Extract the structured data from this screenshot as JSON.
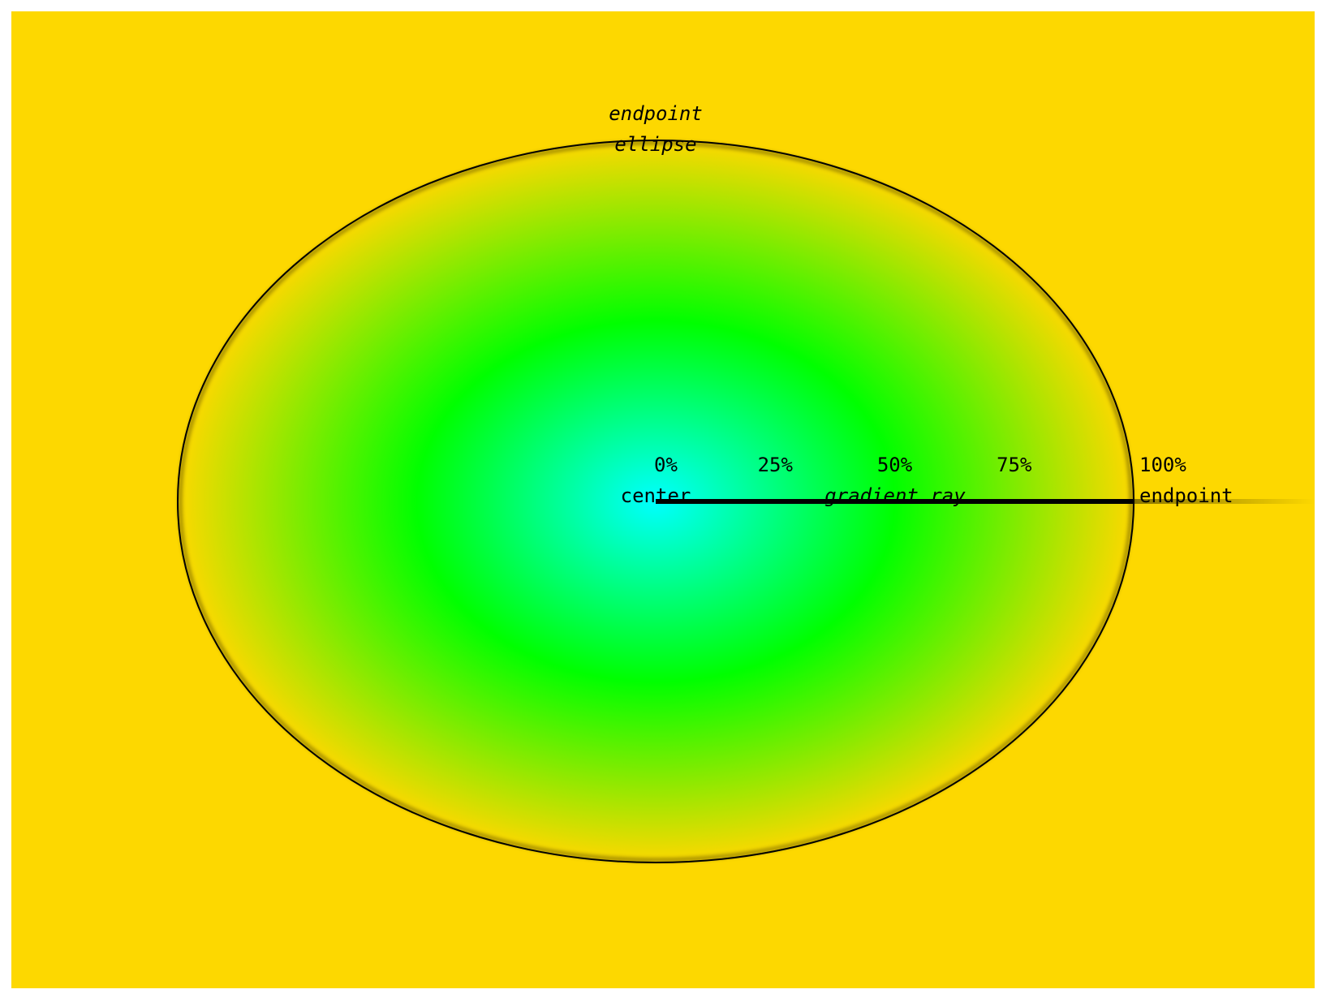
{
  "colors": {
    "background": "#FDD800",
    "center": "#00FFFF",
    "middle": "#00FF00",
    "edge": "#FDD800",
    "outline": "#000000",
    "ray": "#000000"
  },
  "gradient": {
    "stops": [
      {
        "offset": 0,
        "color": "#00FFFF"
      },
      {
        "offset": 0.5,
        "color": "#00FF00"
      },
      {
        "offset": 1,
        "color": "#FDD800"
      }
    ]
  },
  "labels": {
    "ellipse": {
      "line1": "endpoint",
      "line2": "ellipse"
    },
    "ray": "gradient ray",
    "center": "center",
    "endpoint": "endpoint"
  },
  "stops": [
    {
      "label": "0%"
    },
    {
      "label": "25%"
    },
    {
      "label": "50%"
    },
    {
      "label": "75%"
    },
    {
      "label": "100%"
    }
  ]
}
